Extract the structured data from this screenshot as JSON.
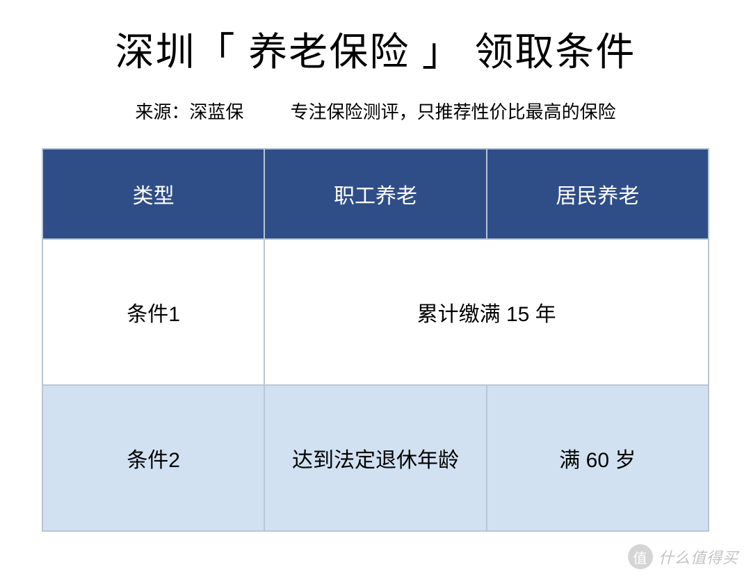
{
  "title": "深圳「 养老保险 」 领取条件",
  "subtitle": {
    "source": "来源：深蓝保",
    "desc": "专注保险测评，只推荐性价比最高的保险"
  },
  "table": {
    "type": "table",
    "header_bg": "#2f4e87",
    "header_text_color": "#ffffff",
    "border_color": "#b8c5d6",
    "row_bg_white": "#ffffff",
    "row_bg_blue": "#d2e1f2",
    "cell_text_color": "#000000",
    "header_fontsize": 30,
    "cell_fontsize": 30,
    "header_row_height": 130,
    "data_row_height": 210,
    "columns": [
      "类型",
      "职工养老",
      "居民养老"
    ],
    "rows": [
      {
        "label": "条件1",
        "merged": true,
        "merged_text": "累计缴满 15 年",
        "bg": "white"
      },
      {
        "label": "条件2",
        "merged": false,
        "col2": "达到法定退休年龄",
        "col3": "满 60 岁",
        "bg": "blue"
      }
    ]
  },
  "watermark": {
    "badge": "值",
    "text": "什么值得买"
  },
  "styling": {
    "page_bg": "#ffffff",
    "title_fontsize": 56,
    "title_color": "#000000",
    "subtitle_fontsize": 26,
    "subtitle_color": "#000000",
    "watermark_opacity": 0.35,
    "watermark_color": "#555555",
    "watermark_fontsize": 22
  }
}
